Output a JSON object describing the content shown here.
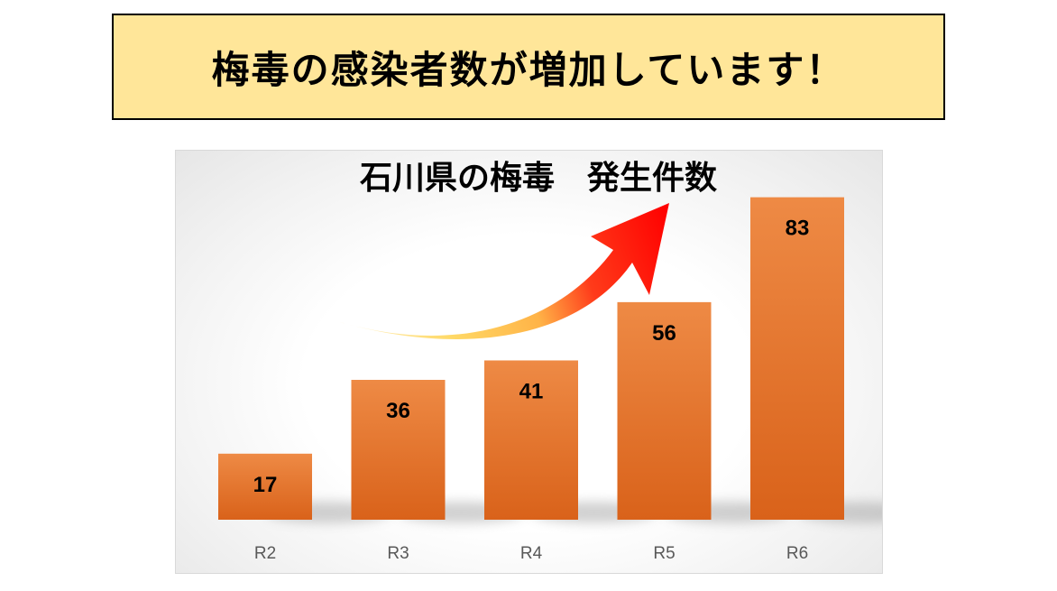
{
  "banner": {
    "text": "梅毒の感染者数が増加しています！",
    "background": "#ffe699"
  },
  "chart_data": {
    "type": "bar",
    "title": "石川県の梅毒　発生件数",
    "categories": [
      "R2",
      "R3",
      "R4",
      "R5",
      "R6"
    ],
    "values": [
      17,
      36,
      41,
      56,
      83
    ],
    "xlabel": "",
    "ylabel": "",
    "ylim": [
      0,
      85
    ],
    "grid": false,
    "legend": "none",
    "data_labels": true,
    "bar_color": "#e8752b",
    "annotation": "rising-trend-arrow"
  }
}
